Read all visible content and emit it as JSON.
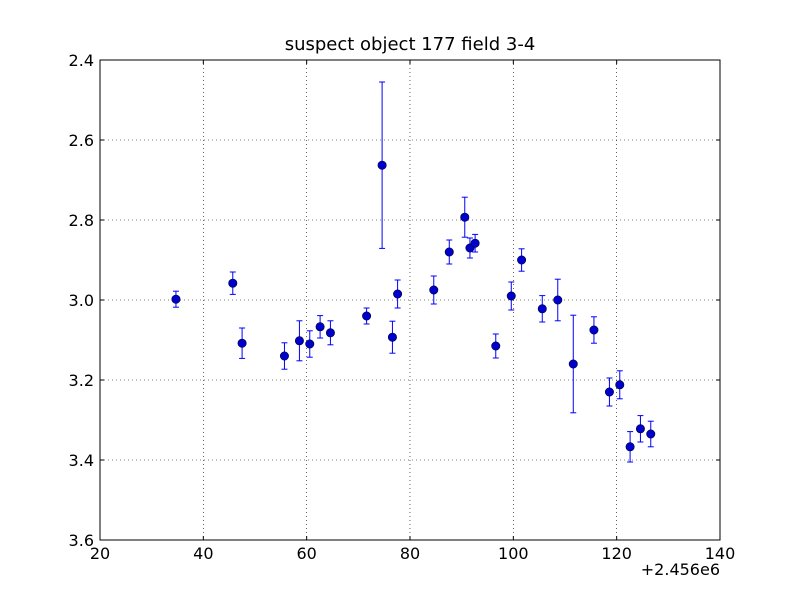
{
  "chart_data": {
    "type": "scatter",
    "title": "suspect object 177 field 3-4",
    "xlabel": "",
    "ylabel": "",
    "x_offset_text": "+2.456e6",
    "xlim": [
      20,
      140
    ],
    "ylim": [
      3.6,
      2.4
    ],
    "y_inverted": true,
    "grid": true,
    "x_ticks": [
      "20",
      "40",
      "60",
      "80",
      "100",
      "120",
      "140"
    ],
    "y_ticks": [
      "2.4",
      "2.6",
      "2.8",
      "3.0",
      "3.2",
      "3.4",
      "3.6"
    ],
    "marker_color": "#0000cc",
    "error_color": "#0000ff",
    "points": [
      {
        "x": 34.7,
        "y": 2.998,
        "err": 0.02
      },
      {
        "x": 45.7,
        "y": 2.958,
        "err": 0.028
      },
      {
        "x": 47.5,
        "y": 3.108,
        "err": 0.038
      },
      {
        "x": 55.7,
        "y": 3.14,
        "err": 0.033
      },
      {
        "x": 58.6,
        "y": 3.102,
        "err": 0.05
      },
      {
        "x": 60.6,
        "y": 3.11,
        "err": 0.033
      },
      {
        "x": 62.6,
        "y": 3.067,
        "err": 0.028
      },
      {
        "x": 64.6,
        "y": 3.082,
        "err": 0.03
      },
      {
        "x": 71.6,
        "y": 3.04,
        "err": 0.02
      },
      {
        "x": 74.6,
        "y": 2.663,
        "err": 0.208
      },
      {
        "x": 76.6,
        "y": 3.093,
        "err": 0.04
      },
      {
        "x": 77.6,
        "y": 2.985,
        "err": 0.035
      },
      {
        "x": 84.6,
        "y": 2.975,
        "err": 0.035
      },
      {
        "x": 87.6,
        "y": 2.88,
        "err": 0.03
      },
      {
        "x": 90.6,
        "y": 2.793,
        "err": 0.05
      },
      {
        "x": 91.6,
        "y": 2.87,
        "err": 0.025
      },
      {
        "x": 92.6,
        "y": 2.858,
        "err": 0.022
      },
      {
        "x": 96.6,
        "y": 3.115,
        "err": 0.03
      },
      {
        "x": 99.6,
        "y": 2.99,
        "err": 0.035
      },
      {
        "x": 101.6,
        "y": 2.9,
        "err": 0.028
      },
      {
        "x": 105.6,
        "y": 3.022,
        "err": 0.033
      },
      {
        "x": 108.6,
        "y": 3.0,
        "err": 0.052
      },
      {
        "x": 111.6,
        "y": 3.16,
        "err": 0.122
      },
      {
        "x": 115.6,
        "y": 3.075,
        "err": 0.033
      },
      {
        "x": 118.6,
        "y": 3.23,
        "err": 0.035
      },
      {
        "x": 120.6,
        "y": 3.212,
        "err": 0.035
      },
      {
        "x": 122.6,
        "y": 3.367,
        "err": 0.038
      },
      {
        "x": 124.6,
        "y": 3.322,
        "err": 0.033
      },
      {
        "x": 126.6,
        "y": 3.335,
        "err": 0.032
      }
    ]
  }
}
